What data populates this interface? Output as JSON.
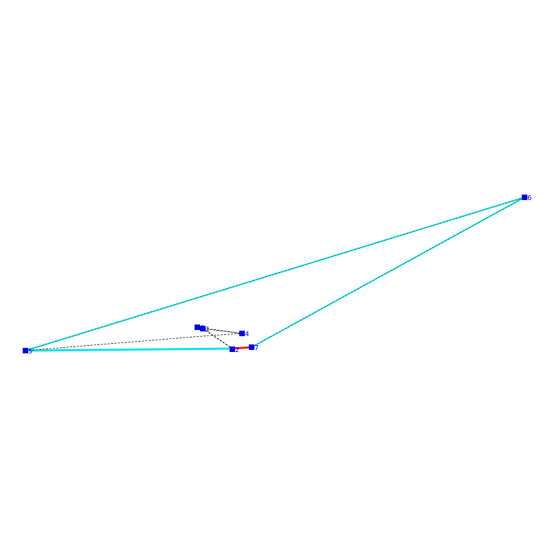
{
  "nodes": [
    {
      "label": "0"
    },
    {
      "label": "1"
    },
    {
      "label": "2"
    },
    {
      "label": "4"
    },
    {
      "label": "5"
    },
    {
      "label": "6"
    },
    {
      "label": "7"
    }
  ]
}
